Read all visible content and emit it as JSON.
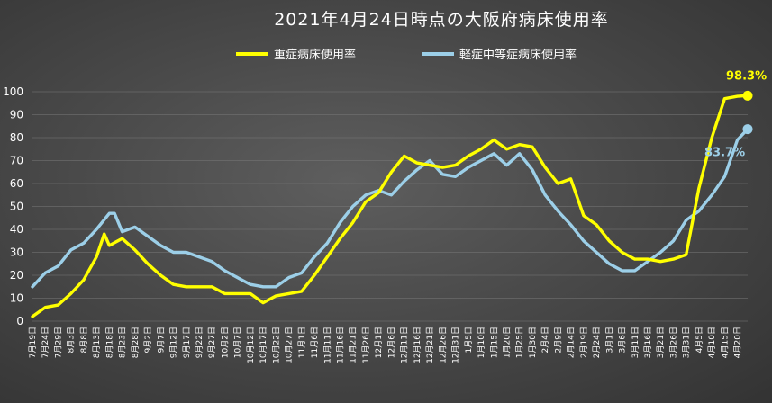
{
  "chart_data": {
    "type": "line",
    "title": "2021年4月24日時点の大阪府病床使用率",
    "xlabel": "",
    "ylabel": "",
    "ylim": [
      0,
      100
    ],
    "yticks": [
      0,
      10,
      20,
      30,
      40,
      50,
      60,
      70,
      80,
      90,
      100
    ],
    "grid": true,
    "legend_position": "top",
    "x_start": "2020-07-19",
    "x_end": "2021-04-24",
    "x_tick_labels": [
      "7月19日",
      "7月24日",
      "7月29日",
      "8月3日",
      "8月8日",
      "8月13日",
      "8月18日",
      "8月23日",
      "8月28日",
      "9月2日",
      "9月7日",
      "9月12日",
      "9月17日",
      "9月22日",
      "9月27日",
      "10月2日",
      "10月7日",
      "10月12日",
      "10月17日",
      "10月22日",
      "10月27日",
      "11月1日",
      "11月6日",
      "11月11日",
      "11月16日",
      "11月21日",
      "11月26日",
      "12月1日",
      "12月6日",
      "12月11日",
      "12月16日",
      "12月21日",
      "12月26日",
      "12月31日",
      "1月5日",
      "1月10日",
      "1月15日",
      "1月20日",
      "1月25日",
      "1月30日",
      "2月4日",
      "2月9日",
      "2月14日",
      "2月19日",
      "2月24日",
      "3月1日",
      "3月6日",
      "3月11日",
      "3月16日",
      "3月21日",
      "3月26日",
      "3月31日",
      "4月5日",
      "4月10日",
      "4月15日",
      "4月20日"
    ],
    "series": [
      {
        "name": "重症病床使用率",
        "color": "#ffff00",
        "end_label": "98.3%",
        "x": [
          "2020-07-19",
          "2020-07-24",
          "2020-07-29",
          "2020-08-03",
          "2020-08-08",
          "2020-08-13",
          "2020-08-16",
          "2020-08-18",
          "2020-08-23",
          "2020-08-28",
          "2020-09-02",
          "2020-09-07",
          "2020-09-12",
          "2020-09-17",
          "2020-09-22",
          "2020-09-27",
          "2020-10-02",
          "2020-10-07",
          "2020-10-12",
          "2020-10-17",
          "2020-10-22",
          "2020-10-27",
          "2020-11-01",
          "2020-11-06",
          "2020-11-11",
          "2020-11-16",
          "2020-11-21",
          "2020-11-26",
          "2020-12-01",
          "2020-12-06",
          "2020-12-11",
          "2020-12-16",
          "2020-12-21",
          "2020-12-26",
          "2020-12-31",
          "2021-01-05",
          "2021-01-10",
          "2021-01-15",
          "2021-01-20",
          "2021-01-25",
          "2021-01-30",
          "2021-02-04",
          "2021-02-09",
          "2021-02-14",
          "2021-02-19",
          "2021-02-24",
          "2021-03-01",
          "2021-03-06",
          "2021-03-11",
          "2021-03-16",
          "2021-03-21",
          "2021-03-26",
          "2021-03-31",
          "2021-04-05",
          "2021-04-10",
          "2021-04-15",
          "2021-04-20",
          "2021-04-24"
        ],
        "values": [
          2,
          6,
          7,
          12,
          18,
          28,
          38,
          33,
          36,
          31,
          25,
          20,
          16,
          15,
          15,
          15,
          12,
          12,
          12,
          8,
          11,
          12,
          13,
          20,
          28,
          36,
          43,
          52,
          56,
          65,
          72,
          69,
          68,
          67,
          68,
          72,
          75,
          79,
          75,
          77,
          76,
          67,
          60,
          62,
          46,
          42,
          35,
          30,
          27,
          27,
          26,
          27,
          29,
          58,
          80,
          97,
          98,
          98.3
        ]
      },
      {
        "name": "軽症中等症病床使用率",
        "color": "#9ccfe8",
        "end_label": "83.7%",
        "x": [
          "2020-07-19",
          "2020-07-24",
          "2020-07-29",
          "2020-08-03",
          "2020-08-08",
          "2020-08-13",
          "2020-08-18",
          "2020-08-20",
          "2020-08-23",
          "2020-08-28",
          "2020-09-02",
          "2020-09-07",
          "2020-09-12",
          "2020-09-17",
          "2020-09-22",
          "2020-09-27",
          "2020-10-02",
          "2020-10-07",
          "2020-10-12",
          "2020-10-17",
          "2020-10-22",
          "2020-10-27",
          "2020-11-01",
          "2020-11-06",
          "2020-11-11",
          "2020-11-16",
          "2020-11-21",
          "2020-11-26",
          "2020-12-01",
          "2020-12-06",
          "2020-12-11",
          "2020-12-16",
          "2020-12-21",
          "2020-12-26",
          "2020-12-31",
          "2021-01-05",
          "2021-01-10",
          "2021-01-15",
          "2021-01-20",
          "2021-01-25",
          "2021-01-30",
          "2021-02-04",
          "2021-02-09",
          "2021-02-14",
          "2021-02-19",
          "2021-02-24",
          "2021-03-01",
          "2021-03-06",
          "2021-03-11",
          "2021-03-16",
          "2021-03-21",
          "2021-03-26",
          "2021-03-31",
          "2021-04-05",
          "2021-04-10",
          "2021-04-15",
          "2021-04-20",
          "2021-04-24"
        ],
        "values": [
          15,
          21,
          24,
          31,
          34,
          40,
          47,
          47,
          39,
          41,
          37,
          33,
          30,
          30,
          28,
          26,
          22,
          19,
          16,
          15,
          15,
          19,
          21,
          28,
          34,
          43,
          50,
          55,
          57,
          55,
          61,
          66,
          70,
          64,
          63,
          67,
          70,
          73,
          68,
          73,
          66,
          55,
          48,
          42,
          35,
          30,
          25,
          22,
          22,
          26,
          30,
          35,
          44,
          48,
          55,
          63,
          79,
          83.7
        ]
      }
    ]
  }
}
